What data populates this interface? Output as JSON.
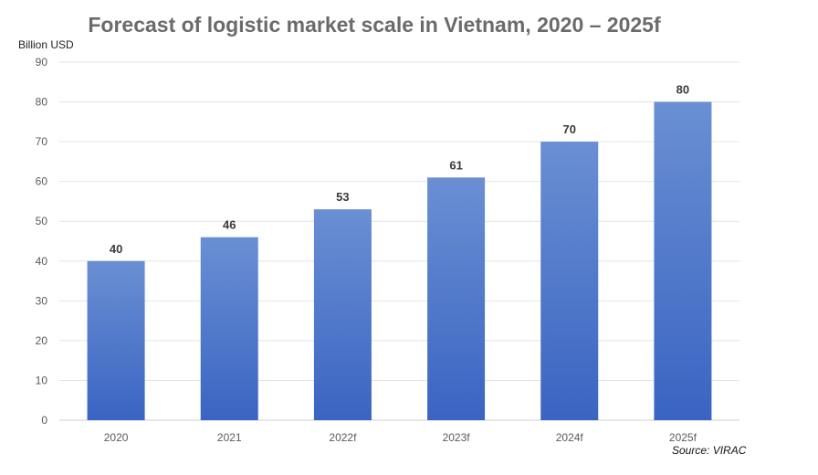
{
  "chart_data": {
    "type": "bar",
    "title": "Forecast of logistic market scale in Vietnam, 2020 – 2025f",
    "ylabel": "Billion USD",
    "xlabel": "",
    "categories": [
      "2020",
      "2021",
      "2022f",
      "2023f",
      "2024f",
      "2025f"
    ],
    "values": [
      40,
      46,
      53,
      61,
      70,
      80
    ],
    "ylim": [
      0,
      90
    ],
    "yticks": [
      0,
      10,
      20,
      30,
      40,
      50,
      60,
      70,
      80,
      90
    ],
    "grid": true,
    "bar_color_top": "#6a8fd3",
    "bar_color_bottom": "#3a64c2",
    "source": "Source: VIRAC"
  }
}
